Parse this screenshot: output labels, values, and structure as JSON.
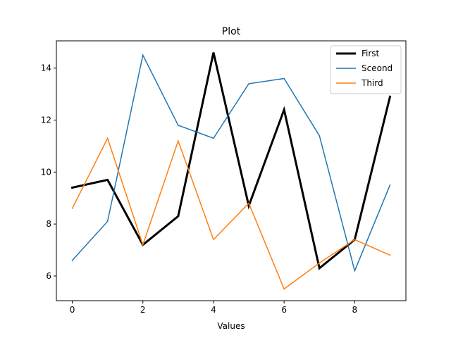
{
  "chart_data": {
    "type": "line",
    "title": "Plot",
    "xlabel": "Values",
    "ylabel": "",
    "xlim": [
      -0.45,
      9.45
    ],
    "ylim": [
      5.05,
      15.05
    ],
    "x": [
      0,
      1,
      2,
      3,
      4,
      5,
      6,
      7,
      8,
      9
    ],
    "xticks": [
      0,
      2,
      4,
      6,
      8
    ],
    "yticks": [
      6,
      8,
      10,
      12,
      14
    ],
    "grid": false,
    "legend_position": "top-right",
    "series": [
      {
        "name": "First",
        "color": "#000000",
        "width": 3,
        "values": [
          9.4,
          9.7,
          7.2,
          8.3,
          14.6,
          8.7,
          12.4,
          6.3,
          7.4,
          12.9
        ]
      },
      {
        "name": "Sceond",
        "color": "#1f77b4",
        "width": 1.5,
        "values": [
          6.6,
          8.1,
          14.5,
          11.8,
          11.3,
          13.4,
          13.6,
          11.4,
          6.2,
          9.5
        ]
      },
      {
        "name": "Third",
        "color": "#ff7f0e",
        "width": 1.5,
        "values": [
          8.6,
          11.3,
          7.2,
          11.2,
          7.4,
          8.8,
          5.5,
          6.5,
          7.4,
          6.8
        ]
      }
    ]
  }
}
